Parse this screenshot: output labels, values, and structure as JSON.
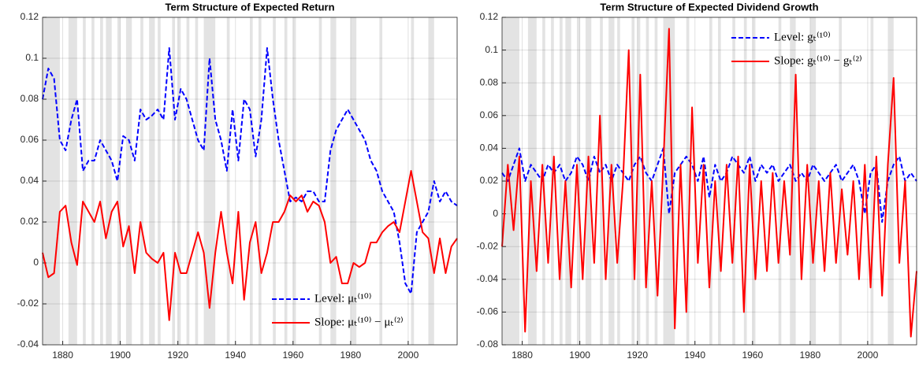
{
  "chart_data": [
    {
      "type": "line",
      "title": "Term Structure of Expected Return",
      "x": [
        1873,
        1875,
        1877,
        1879,
        1881,
        1883,
        1885,
        1887,
        1889,
        1891,
        1893,
        1895,
        1897,
        1899,
        1901,
        1903,
        1905,
        1907,
        1909,
        1911,
        1913,
        1915,
        1917,
        1919,
        1921,
        1923,
        1925,
        1927,
        1929,
        1931,
        1933,
        1935,
        1937,
        1939,
        1941,
        1943,
        1945,
        1947,
        1949,
        1951,
        1953,
        1955,
        1957,
        1959,
        1961,
        1963,
        1965,
        1967,
        1969,
        1971,
        1973,
        1975,
        1977,
        1979,
        1981,
        1983,
        1985,
        1987,
        1989,
        1991,
        1993,
        1995,
        1997,
        1999,
        2001,
        2003,
        2005,
        2007,
        2009,
        2011,
        2013,
        2015,
        2017
      ],
      "series": [
        {
          "name": "Level: μₜ⁽¹⁰⁾",
          "color": "#0000ff",
          "style": "dashed",
          "values": [
            0.08,
            0.095,
            0.09,
            0.06,
            0.055,
            0.07,
            0.08,
            0.045,
            0.05,
            0.05,
            0.06,
            0.055,
            0.05,
            0.04,
            0.062,
            0.06,
            0.05,
            0.075,
            0.07,
            0.072,
            0.075,
            0.07,
            0.105,
            0.07,
            0.085,
            0.08,
            0.07,
            0.06,
            0.055,
            0.1,
            0.07,
            0.06,
            0.045,
            0.075,
            0.05,
            0.08,
            0.075,
            0.052,
            0.07,
            0.105,
            0.08,
            0.06,
            0.045,
            0.03,
            0.032,
            0.03,
            0.035,
            0.035,
            0.03,
            0.03,
            0.055,
            0.065,
            0.07,
            0.075,
            0.07,
            0.065,
            0.06,
            0.05,
            0.045,
            0.035,
            0.03,
            0.025,
            0.01,
            -0.01,
            -0.015,
            0.015,
            0.02,
            0.025,
            0.04,
            0.03,
            0.035,
            0.03,
            0.028
          ]
        },
        {
          "name": "Slope: μₜ⁽¹⁰⁾ − μₜ⁽²⁾",
          "color": "#ff0000",
          "style": "solid",
          "values": [
            0.005,
            -0.007,
            -0.005,
            0.025,
            0.028,
            0.01,
            -0.001,
            0.03,
            0.025,
            0.02,
            0.03,
            0.012,
            0.025,
            0.03,
            0.008,
            0.018,
            -0.005,
            0.02,
            0.005,
            0.002,
            0,
            0.005,
            -0.028,
            0.005,
            -0.005,
            -0.005,
            0.005,
            0.015,
            0.005,
            -0.022,
            0.005,
            0.025,
            0.005,
            -0.01,
            0.025,
            -0.018,
            0.01,
            0.02,
            -0.005,
            0.005,
            0.02,
            0.02,
            0.025,
            0.033,
            0.03,
            0.033,
            0.025,
            0.03,
            0.028,
            0.02,
            0,
            0.003,
            -0.01,
            -0.01,
            0,
            -0.002,
            0,
            0.01,
            0.01,
            0.015,
            0.018,
            0.02,
            0.015,
            0.03,
            0.045,
            0.03,
            0.015,
            0.012,
            -0.005,
            0.012,
            -0.005,
            0.008,
            0.012
          ]
        }
      ],
      "xlim": [
        1873,
        2017
      ],
      "ylim": [
        -0.04,
        0.12
      ],
      "xticks": [
        1880,
        1900,
        1920,
        1940,
        1960,
        1980,
        2000
      ],
      "yticks": [
        -0.04,
        -0.02,
        0,
        0.02,
        0.04,
        0.06,
        0.08,
        0.1,
        0.12
      ],
      "grid": true,
      "legend": "lower right",
      "shade_color": "#e3e3e3",
      "shaded_periods": [
        [
          1873,
          1879
        ],
        [
          1882,
          1885
        ],
        [
          1887,
          1888
        ],
        [
          1890,
          1891
        ],
        [
          1893,
          1894
        ],
        [
          1895,
          1897
        ],
        [
          1899,
          1900
        ],
        [
          1902,
          1904
        ],
        [
          1907,
          1908
        ],
        [
          1910,
          1912
        ],
        [
          1913,
          1914
        ],
        [
          1918,
          1919
        ],
        [
          1920,
          1921
        ],
        [
          1923,
          1924
        ],
        [
          1926,
          1927
        ],
        [
          1929,
          1933
        ],
        [
          1937,
          1938
        ],
        [
          1945,
          1946
        ],
        [
          1948,
          1949
        ],
        [
          1953,
          1954
        ],
        [
          1957,
          1958
        ],
        [
          1960,
          1961
        ],
        [
          1969,
          1970
        ],
        [
          1973,
          1975
        ],
        [
          1980,
          1981
        ],
        [
          1981,
          1982
        ],
        [
          1990,
          1991
        ],
        [
          2001,
          2002
        ],
        [
          2007,
          2009
        ]
      ]
    },
    {
      "type": "line",
      "title": "Term Structure of Expected Dividend Growth",
      "x": [
        1873,
        1875,
        1877,
        1879,
        1881,
        1883,
        1885,
        1887,
        1889,
        1891,
        1893,
        1895,
        1897,
        1899,
        1901,
        1903,
        1905,
        1907,
        1909,
        1911,
        1913,
        1915,
        1917,
        1919,
        1921,
        1923,
        1925,
        1927,
        1929,
        1931,
        1933,
        1935,
        1937,
        1939,
        1941,
        1943,
        1945,
        1947,
        1949,
        1951,
        1953,
        1955,
        1957,
        1959,
        1961,
        1963,
        1965,
        1967,
        1969,
        1971,
        1973,
        1975,
        1977,
        1979,
        1981,
        1983,
        1985,
        1987,
        1989,
        1991,
        1993,
        1995,
        1997,
        1999,
        2001,
        2003,
        2005,
        2007,
        2009,
        2011,
        2013,
        2015,
        2017
      ],
      "series": [
        {
          "name": "Level: gₜ⁽¹⁰⁾",
          "color": "#0000ff",
          "style": "dashed",
          "values": [
            0.025,
            0.02,
            0.03,
            0.04,
            0.02,
            0.03,
            0.025,
            0.02,
            0.03,
            0.025,
            0.03,
            0.02,
            0.025,
            0.035,
            0.03,
            0.02,
            0.035,
            0.025,
            0.03,
            0.02,
            0.03,
            0.025,
            0.02,
            0.03,
            0.035,
            0.025,
            0.02,
            0.03,
            0.04,
            0,
            0.025,
            0.03,
            0.035,
            0.03,
            0.02,
            0.035,
            0.01,
            0.03,
            0.02,
            0.025,
            0.035,
            0.03,
            0.025,
            0.035,
            0.02,
            0.03,
            0.025,
            0.03,
            0.02,
            0.025,
            0.03,
            0.02,
            0.025,
            0.02,
            0.03,
            0.025,
            0.02,
            0.025,
            0.03,
            0.02,
            0.025,
            0.03,
            0.02,
            0,
            0.025,
            0.03,
            -0.005,
            0.02,
            0.03,
            0.035,
            0.02,
            0.025,
            0.02
          ]
        },
        {
          "name": "Slope: gₜ⁽¹⁰⁾ − gₜ⁽²⁾",
          "color": "#ff0000",
          "style": "solid",
          "values": [
            -0.02,
            0.03,
            -0.01,
            0.035,
            -0.072,
            0.02,
            -0.035,
            0.03,
            -0.03,
            0.035,
            -0.04,
            0.02,
            -0.045,
            0.03,
            -0.04,
            0.035,
            -0.03,
            0.06,
            -0.04,
            0.03,
            -0.03,
            0.02,
            0.1,
            -0.04,
            0.085,
            -0.045,
            0.02,
            -0.05,
            0.03,
            0.113,
            -0.07,
            0.03,
            -0.06,
            0.065,
            -0.03,
            0.03,
            -0.045,
            0.02,
            -0.035,
            0.03,
            -0.03,
            0.035,
            -0.06,
            0.03,
            -0.04,
            0.02,
            -0.035,
            0.025,
            -0.03,
            0.02,
            -0.025,
            0.085,
            -0.04,
            0.03,
            -0.03,
            0.02,
            -0.035,
            0.025,
            -0.03,
            0.015,
            -0.025,
            0.02,
            -0.04,
            0.03,
            -0.045,
            0.035,
            -0.05,
            0.03,
            0.083,
            -0.03,
            0.02,
            -0.075,
            -0.035
          ]
        }
      ],
      "xlim": [
        1873,
        2017
      ],
      "ylim": [
        -0.08,
        0.12
      ],
      "xticks": [
        1880,
        1900,
        1920,
        1940,
        1960,
        1980,
        2000
      ],
      "yticks": [
        -0.08,
        -0.06,
        -0.04,
        -0.02,
        0,
        0.02,
        0.04,
        0.06,
        0.08,
        0.1,
        0.12
      ],
      "grid": true,
      "legend": "upper right",
      "shade_color": "#e3e3e3",
      "shaded_periods": [
        [
          1873,
          1879
        ],
        [
          1882,
          1885
        ],
        [
          1887,
          1888
        ],
        [
          1890,
          1891
        ],
        [
          1893,
          1894
        ],
        [
          1895,
          1897
        ],
        [
          1899,
          1900
        ],
        [
          1902,
          1904
        ],
        [
          1907,
          1908
        ],
        [
          1910,
          1912
        ],
        [
          1913,
          1914
        ],
        [
          1918,
          1919
        ],
        [
          1920,
          1921
        ],
        [
          1923,
          1924
        ],
        [
          1926,
          1927
        ],
        [
          1929,
          1933
        ],
        [
          1937,
          1938
        ],
        [
          1945,
          1946
        ],
        [
          1948,
          1949
        ],
        [
          1953,
          1954
        ],
        [
          1957,
          1958
        ],
        [
          1960,
          1961
        ],
        [
          1969,
          1970
        ],
        [
          1973,
          1975
        ],
        [
          1980,
          1981
        ],
        [
          1981,
          1982
        ],
        [
          1990,
          1991
        ],
        [
          2001,
          2002
        ],
        [
          2007,
          2009
        ]
      ]
    }
  ]
}
